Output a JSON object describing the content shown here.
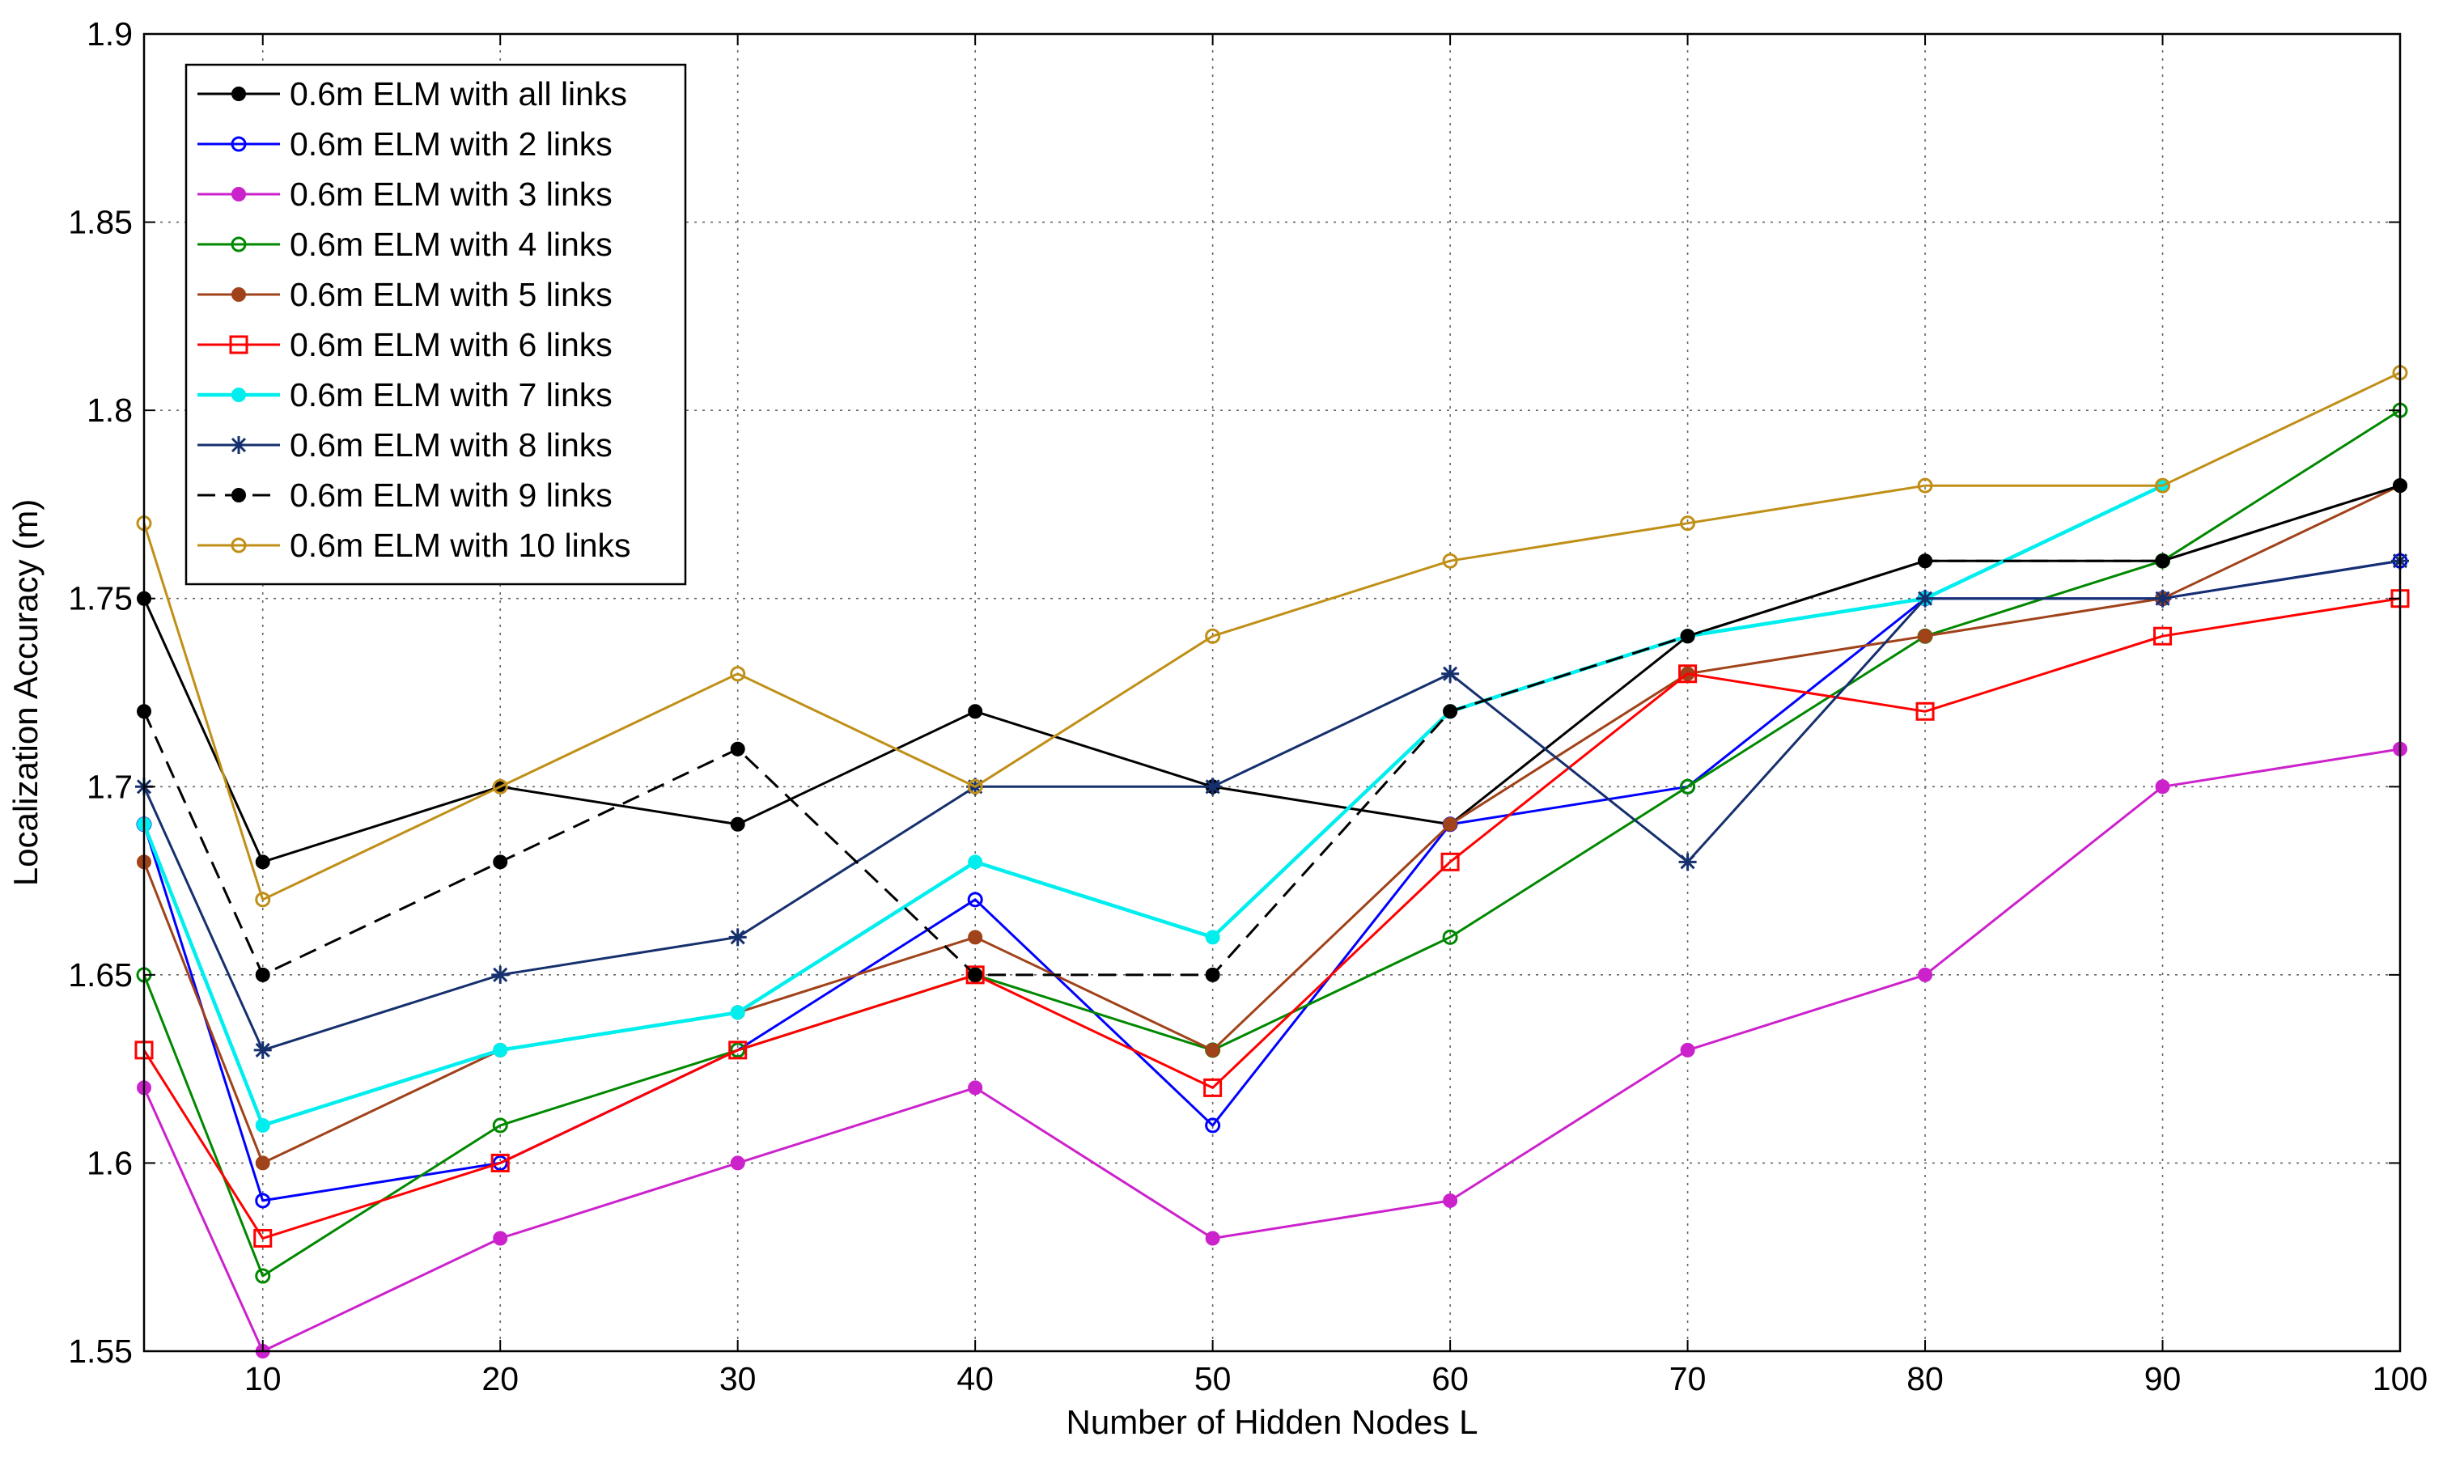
{
  "chart_data": {
    "type": "line",
    "title": "",
    "xlabel": "Number of Hidden Nodes L",
    "ylabel": "Localization Accuracy (m)",
    "x": [
      5,
      10,
      20,
      30,
      40,
      50,
      60,
      70,
      80,
      90,
      100
    ],
    "xlim": [
      5,
      100
    ],
    "ylim": [
      1.55,
      1.9
    ],
    "xticks": [
      10,
      20,
      30,
      40,
      50,
      60,
      70,
      80,
      90,
      100
    ],
    "yticks": [
      1.55,
      1.6,
      1.65,
      1.7,
      1.75,
      1.8,
      1.85,
      1.9
    ],
    "xtick_labels": [
      "10",
      "20",
      "30",
      "40",
      "50",
      "60",
      "70",
      "80",
      "90",
      "100"
    ],
    "ytick_labels": [
      "1.55",
      "1.6",
      "1.65",
      "1.7",
      "1.75",
      "1.8",
      "1.85",
      "1.9"
    ],
    "grid": true,
    "legend_position": "top-left",
    "series": [
      {
        "name": "0.6m ELM with all links",
        "color": "#000000",
        "marker": "filled-circle",
        "dash": "solid",
        "values": [
          1.75,
          1.68,
          1.7,
          1.69,
          1.72,
          1.7,
          1.69,
          1.74,
          1.76,
          1.76,
          1.78
        ]
      },
      {
        "name": "0.6m ELM with 2 links",
        "color": "#0000ff",
        "marker": "open-circle",
        "dash": "solid",
        "values": [
          1.69,
          1.59,
          1.6,
          1.63,
          1.67,
          1.61,
          1.69,
          1.7,
          1.75,
          1.75,
          1.76
        ]
      },
      {
        "name": "0.6m ELM with 3 links",
        "color": "#cc22cc",
        "marker": "filled-circle",
        "dash": "solid",
        "values": [
          1.62,
          1.55,
          1.58,
          1.6,
          1.62,
          1.58,
          1.59,
          1.63,
          1.65,
          1.7,
          1.71
        ]
      },
      {
        "name": "0.6m ELM with 4 links",
        "color": "#008800",
        "marker": "open-circle",
        "dash": "solid",
        "values": [
          1.65,
          1.57,
          1.61,
          1.63,
          1.65,
          1.63,
          1.66,
          1.7,
          1.74,
          1.76,
          1.8
        ]
      },
      {
        "name": "0.6m ELM with 5 links",
        "color": "#a0421a",
        "marker": "filled-circle",
        "dash": "solid",
        "values": [
          1.68,
          1.6,
          1.63,
          1.64,
          1.66,
          1.63,
          1.69,
          1.73,
          1.74,
          1.75,
          1.78
        ]
      },
      {
        "name": "0.6m ELM with 6 links",
        "color": "#ff0000",
        "marker": "open-square",
        "dash": "solid",
        "values": [
          1.63,
          1.58,
          1.6,
          1.63,
          1.65,
          1.62,
          1.68,
          1.73,
          1.72,
          1.74,
          1.75
        ]
      },
      {
        "name": "0.6m ELM with 7 links",
        "color": "#00eeee",
        "marker": "filled-circle",
        "dash": "solid",
        "values": [
          1.69,
          1.61,
          1.63,
          1.64,
          1.68,
          1.66,
          1.72,
          1.74,
          1.75,
          1.78,
          null
        ]
      },
      {
        "name": "0.6m ELM with 8 links",
        "color": "#16306e",
        "marker": "star",
        "dash": "solid",
        "values": [
          1.7,
          1.63,
          1.65,
          1.66,
          1.7,
          1.7,
          1.73,
          1.68,
          1.75,
          1.75,
          1.76
        ]
      },
      {
        "name": "0.6m ELM with 9 links",
        "color": "#000000",
        "marker": "filled-circle",
        "dash": "dashed",
        "values": [
          1.72,
          1.65,
          1.68,
          1.71,
          1.65,
          1.65,
          1.72,
          1.74,
          1.76,
          1.76,
          1.78
        ]
      },
      {
        "name": "0.6m ELM with 10 links",
        "color": "#c08f17",
        "marker": "open-circle",
        "dash": "solid",
        "values": [
          1.77,
          1.67,
          1.7,
          1.73,
          1.7,
          1.74,
          1.76,
          1.77,
          1.78,
          1.78,
          1.81
        ]
      }
    ]
  }
}
